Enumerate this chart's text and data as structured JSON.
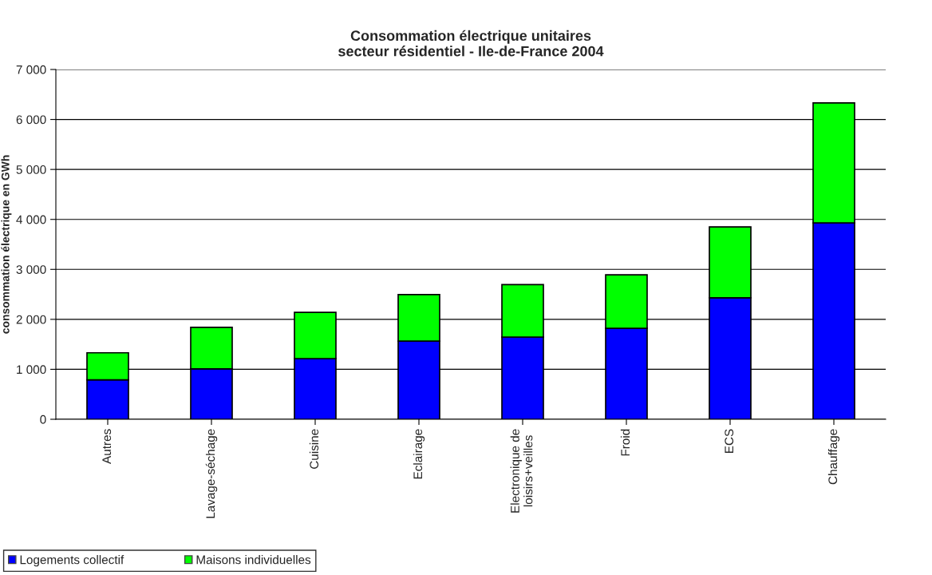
{
  "chart_data": {
    "type": "bar",
    "title": "Consommation électrique unitaires\nsecteur résidentiel - Ile-de-France 2004",
    "ylabel": "consommation électrique en GWh",
    "categories": [
      "Autres",
      "Lavage-séchage",
      "Cuisine",
      "Eclairage",
      "Electronique de\nloisirs+veilles",
      "Froid",
      "ECS",
      "Chauffage"
    ],
    "series": [
      {
        "name": "Logements collectif",
        "color": "#0000ff",
        "values": [
          790,
          1010,
          1215,
          1565,
          1645,
          1820,
          2430,
          3930
        ]
      },
      {
        "name": "Maisons individuelles",
        "color": "#00ff00",
        "values": [
          540,
          830,
          925,
          930,
          1050,
          1070,
          1420,
          2400
        ]
      }
    ],
    "stacked": true,
    "ylim": [
      0,
      7000
    ],
    "yticks": [
      0,
      {
        "value": 1000,
        "label": "1 000"
      },
      {
        "value": 2000,
        "label": "2 000"
      },
      {
        "value": 3000,
        "label": "3 000"
      },
      {
        "value": 4000,
        "label": "4 000"
      },
      {
        "value": 5000,
        "label": "5 000"
      },
      {
        "value": 6000,
        "label": "6 000"
      },
      {
        "value": 7000,
        "label": "7 000"
      }
    ],
    "grid": "y",
    "legend": "bottom left"
  }
}
